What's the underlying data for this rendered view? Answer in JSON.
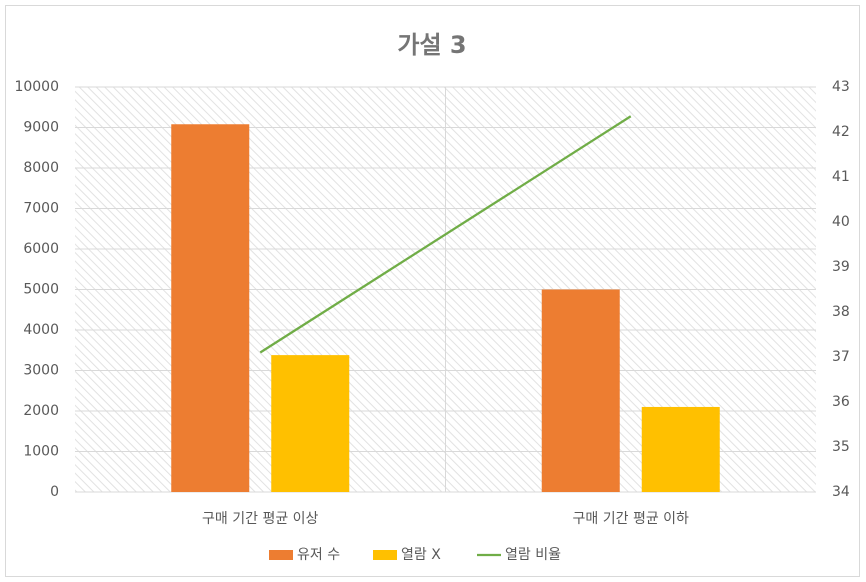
{
  "chart_data": {
    "type": "combo",
    "title": "가설 3",
    "categories": [
      "구매 기간 평균 이상",
      "구매 기간 평균 이하"
    ],
    "series": [
      {
        "name": "유저 수",
        "type": "bar",
        "color": "#ed7d31",
        "values": [
          9080,
          5000
        ]
      },
      {
        "name": "열람 X",
        "type": "bar",
        "color": "#ffc000",
        "values": [
          3380,
          2100
        ]
      },
      {
        "name": "열람 비율",
        "type": "line",
        "axis": "y2",
        "color": "#70ad47",
        "values": [
          37.1,
          42.35
        ]
      }
    ],
    "ylim": [
      0,
      10000
    ],
    "yticks": [
      0,
      1000,
      2000,
      3000,
      4000,
      5000,
      6000,
      7000,
      8000,
      9000,
      10000
    ],
    "y2lim": [
      34,
      43
    ],
    "y2ticks": [
      34,
      35,
      36,
      37,
      38,
      39,
      40,
      41,
      42,
      43
    ],
    "grid": true,
    "legend": "bottom"
  }
}
